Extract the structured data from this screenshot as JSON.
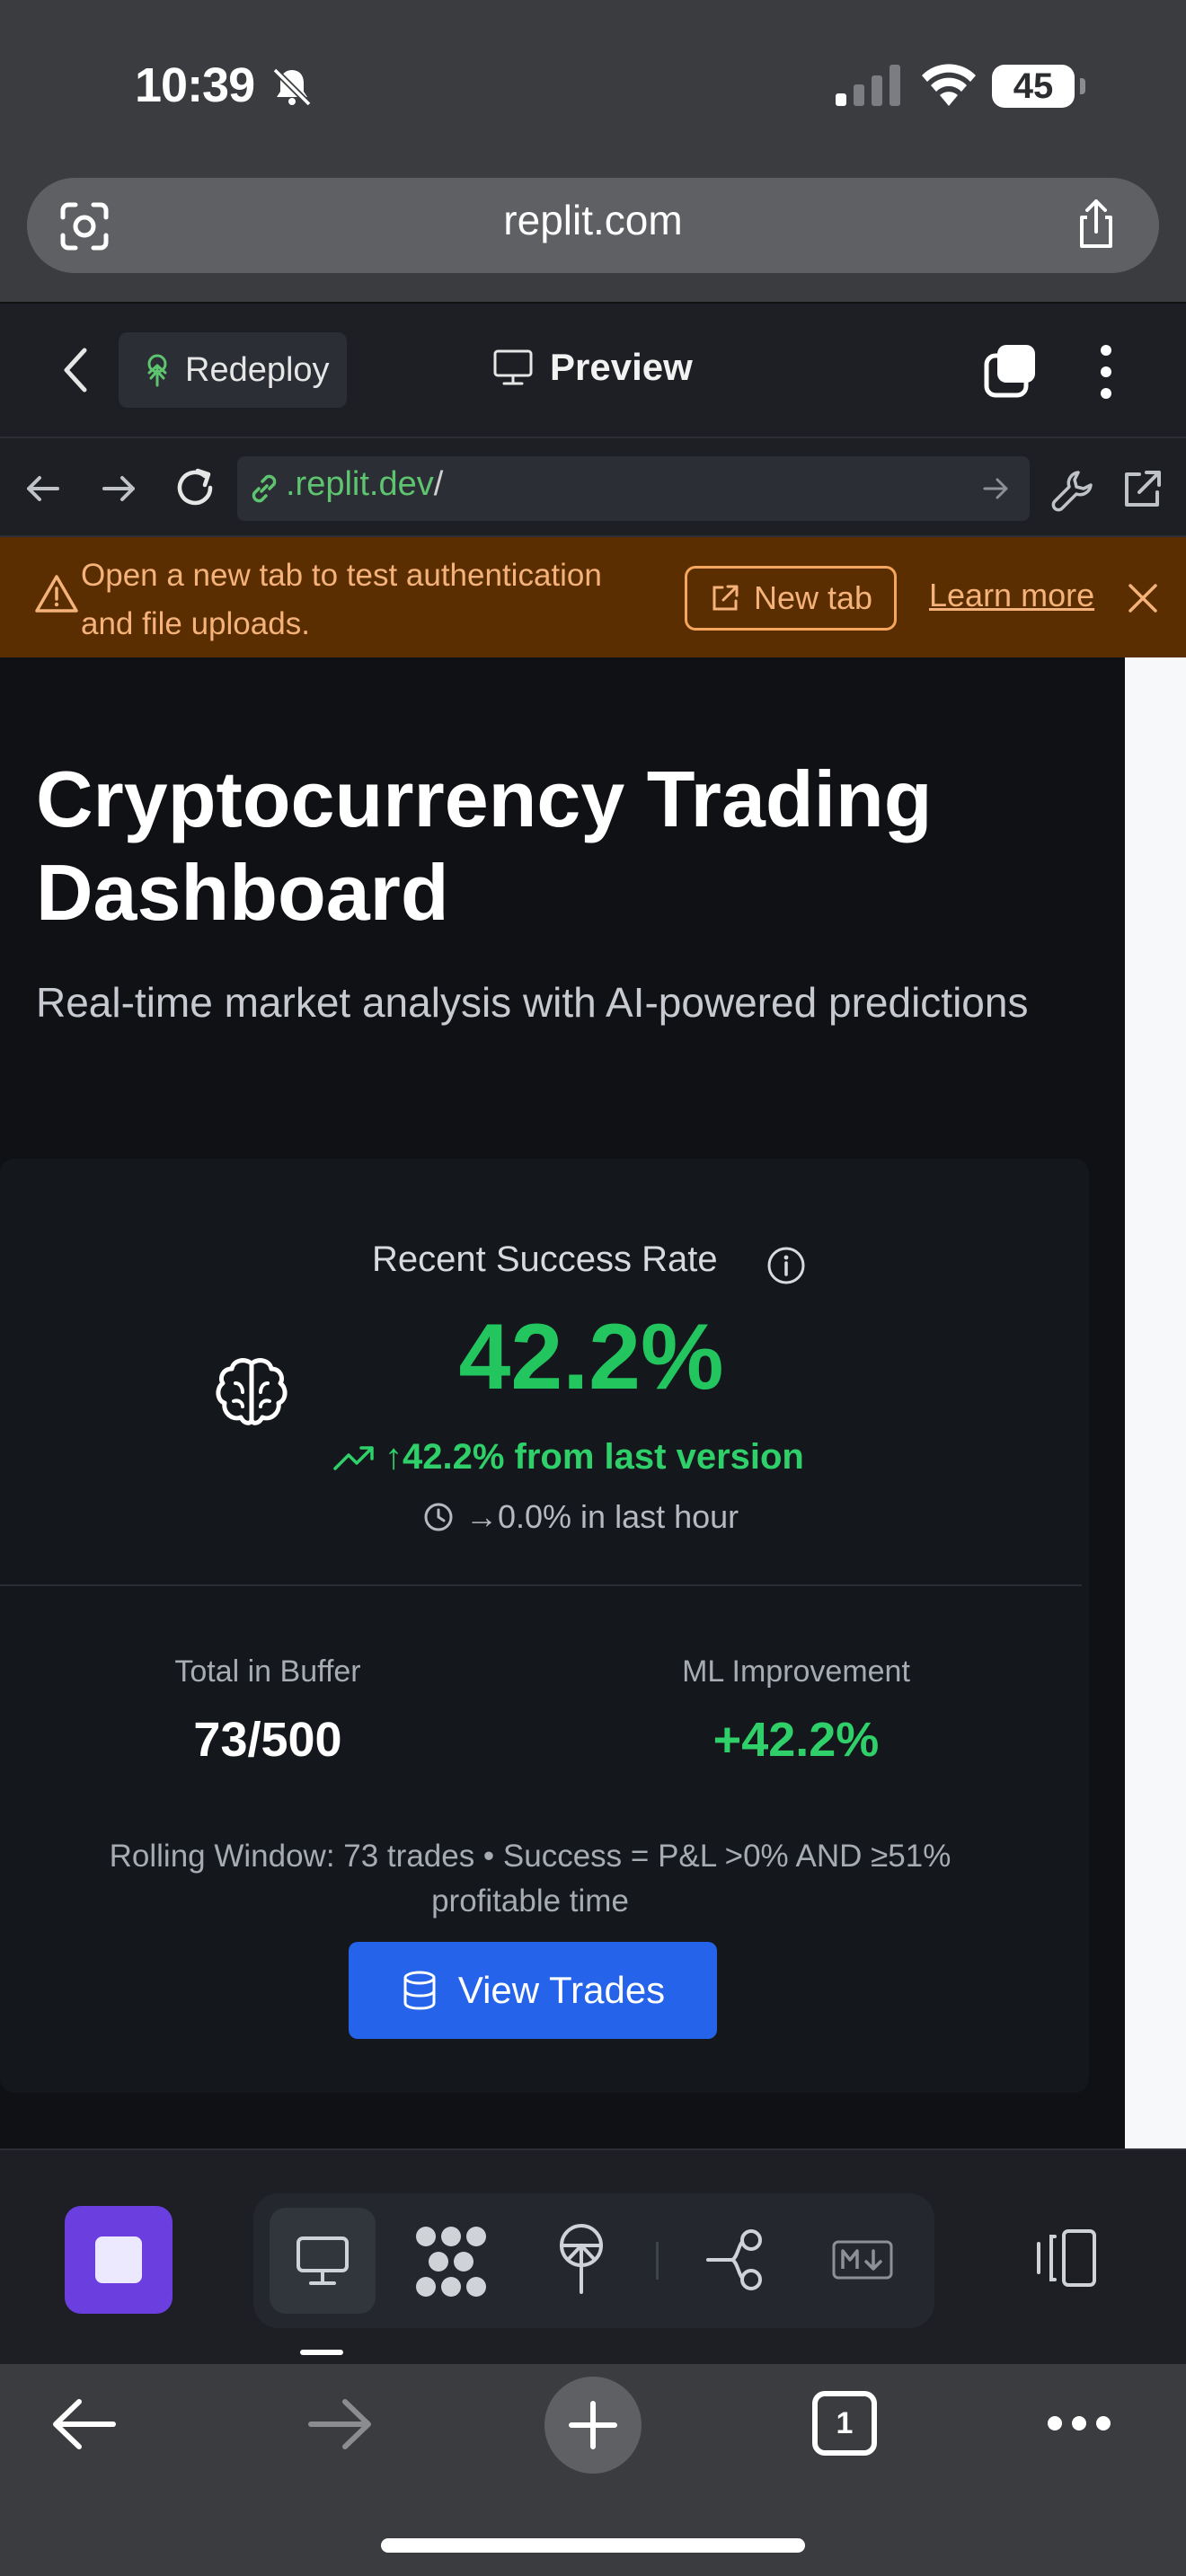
{
  "status_bar": {
    "time": "10:39",
    "battery": "45"
  },
  "browser": {
    "url": "replit.com"
  },
  "replit_header": {
    "redeploy_label": "Redeploy",
    "preview_label": "Preview"
  },
  "webview_nav": {
    "address_domain": ".replit.dev",
    "address_path": "/"
  },
  "banner": {
    "message": "Open a new tab to test authentication and file uploads.",
    "new_tab_label": "New tab",
    "learn_more_label": "Learn more"
  },
  "page": {
    "title": "Cryptocurrency Trading Dashboard",
    "subtitle": "Real-time market analysis with AI-powered predictions"
  },
  "success_card": {
    "label": "Recent Success Rate",
    "rate": "42.2%",
    "trend_text": "↑42.2% from last version",
    "hour_text": "→0.0% in last hour",
    "buffer_label": "Total in Buffer",
    "buffer_value": "73/500",
    "ml_label": "ML Improvement",
    "ml_value": "+42.2%",
    "rolling_text": "Rolling Window: 73 trades • Success = P&L >0% AND ≥51% profitable time",
    "view_trades_label": "View Trades",
    "colors": {
      "positive": "#22c55e",
      "button": "#2563eb"
    }
  },
  "safari_bottom": {
    "tab_count": "1"
  }
}
